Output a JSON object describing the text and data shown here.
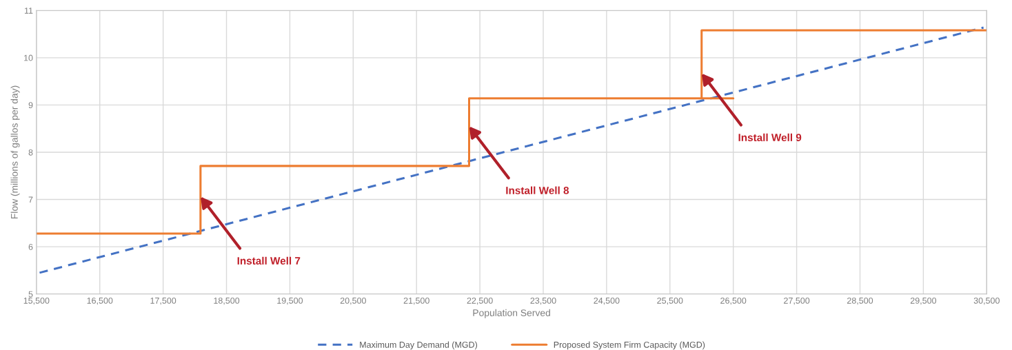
{
  "chart_data": {
    "type": "line",
    "xlabel": "Population Served",
    "ylabel": "Flow (millions of gallos per day)",
    "xlim": [
      15500,
      30500
    ],
    "xticks": [
      {
        "value": 15500,
        "label": "15,500"
      },
      {
        "value": 16500,
        "label": "16,500"
      },
      {
        "value": 17500,
        "label": "17,500"
      },
      {
        "value": 18500,
        "label": "18,500"
      },
      {
        "value": 19500,
        "label": "19,500"
      },
      {
        "value": 20500,
        "label": "20,500"
      },
      {
        "value": 21500,
        "label": "21,500"
      },
      {
        "value": 22500,
        "label": "22,500"
      },
      {
        "value": 23500,
        "label": "23,500"
      },
      {
        "value": 24500,
        "label": "24,500"
      },
      {
        "value": 25500,
        "label": "25,500"
      },
      {
        "value": 26500,
        "label": "26,500"
      },
      {
        "value": 27500,
        "label": "27,500"
      },
      {
        "value": 28500,
        "label": "28,500"
      },
      {
        "value": 29500,
        "label": "29,500"
      },
      {
        "value": 30500,
        "label": "30,500"
      }
    ],
    "ylim": [
      5,
      11
    ],
    "yticks": [
      5,
      6,
      7,
      8,
      9,
      10,
      11
    ],
    "grid": true,
    "legend": "bottom",
    "series": [
      {
        "name": "Maximum Day Demand (MGD)",
        "color": "#4472c4",
        "line_style": "dashed",
        "x": [
          15550,
          30450
        ],
        "values": [
          5.45,
          10.64
        ]
      },
      {
        "name": "Proposed System Firm Capacity (MGD)",
        "color": "#ed7d31",
        "line_style": "solid",
        "x": [
          15500,
          18090,
          18090,
          22330,
          22330,
          26500,
          26000,
          26000,
          30500
        ],
        "values": [
          6.28,
          6.28,
          7.71,
          7.71,
          9.14,
          9.14,
          9.14,
          10.58,
          10.58
        ]
      }
    ],
    "annotations": [
      {
        "text": "Install Well 7",
        "x": 18090,
        "y": 7.06
      },
      {
        "text": "Install Well 8",
        "x": 22330,
        "y": 8.55
      },
      {
        "text": "Install Well 9",
        "x": 26000,
        "y": 9.67
      }
    ]
  }
}
